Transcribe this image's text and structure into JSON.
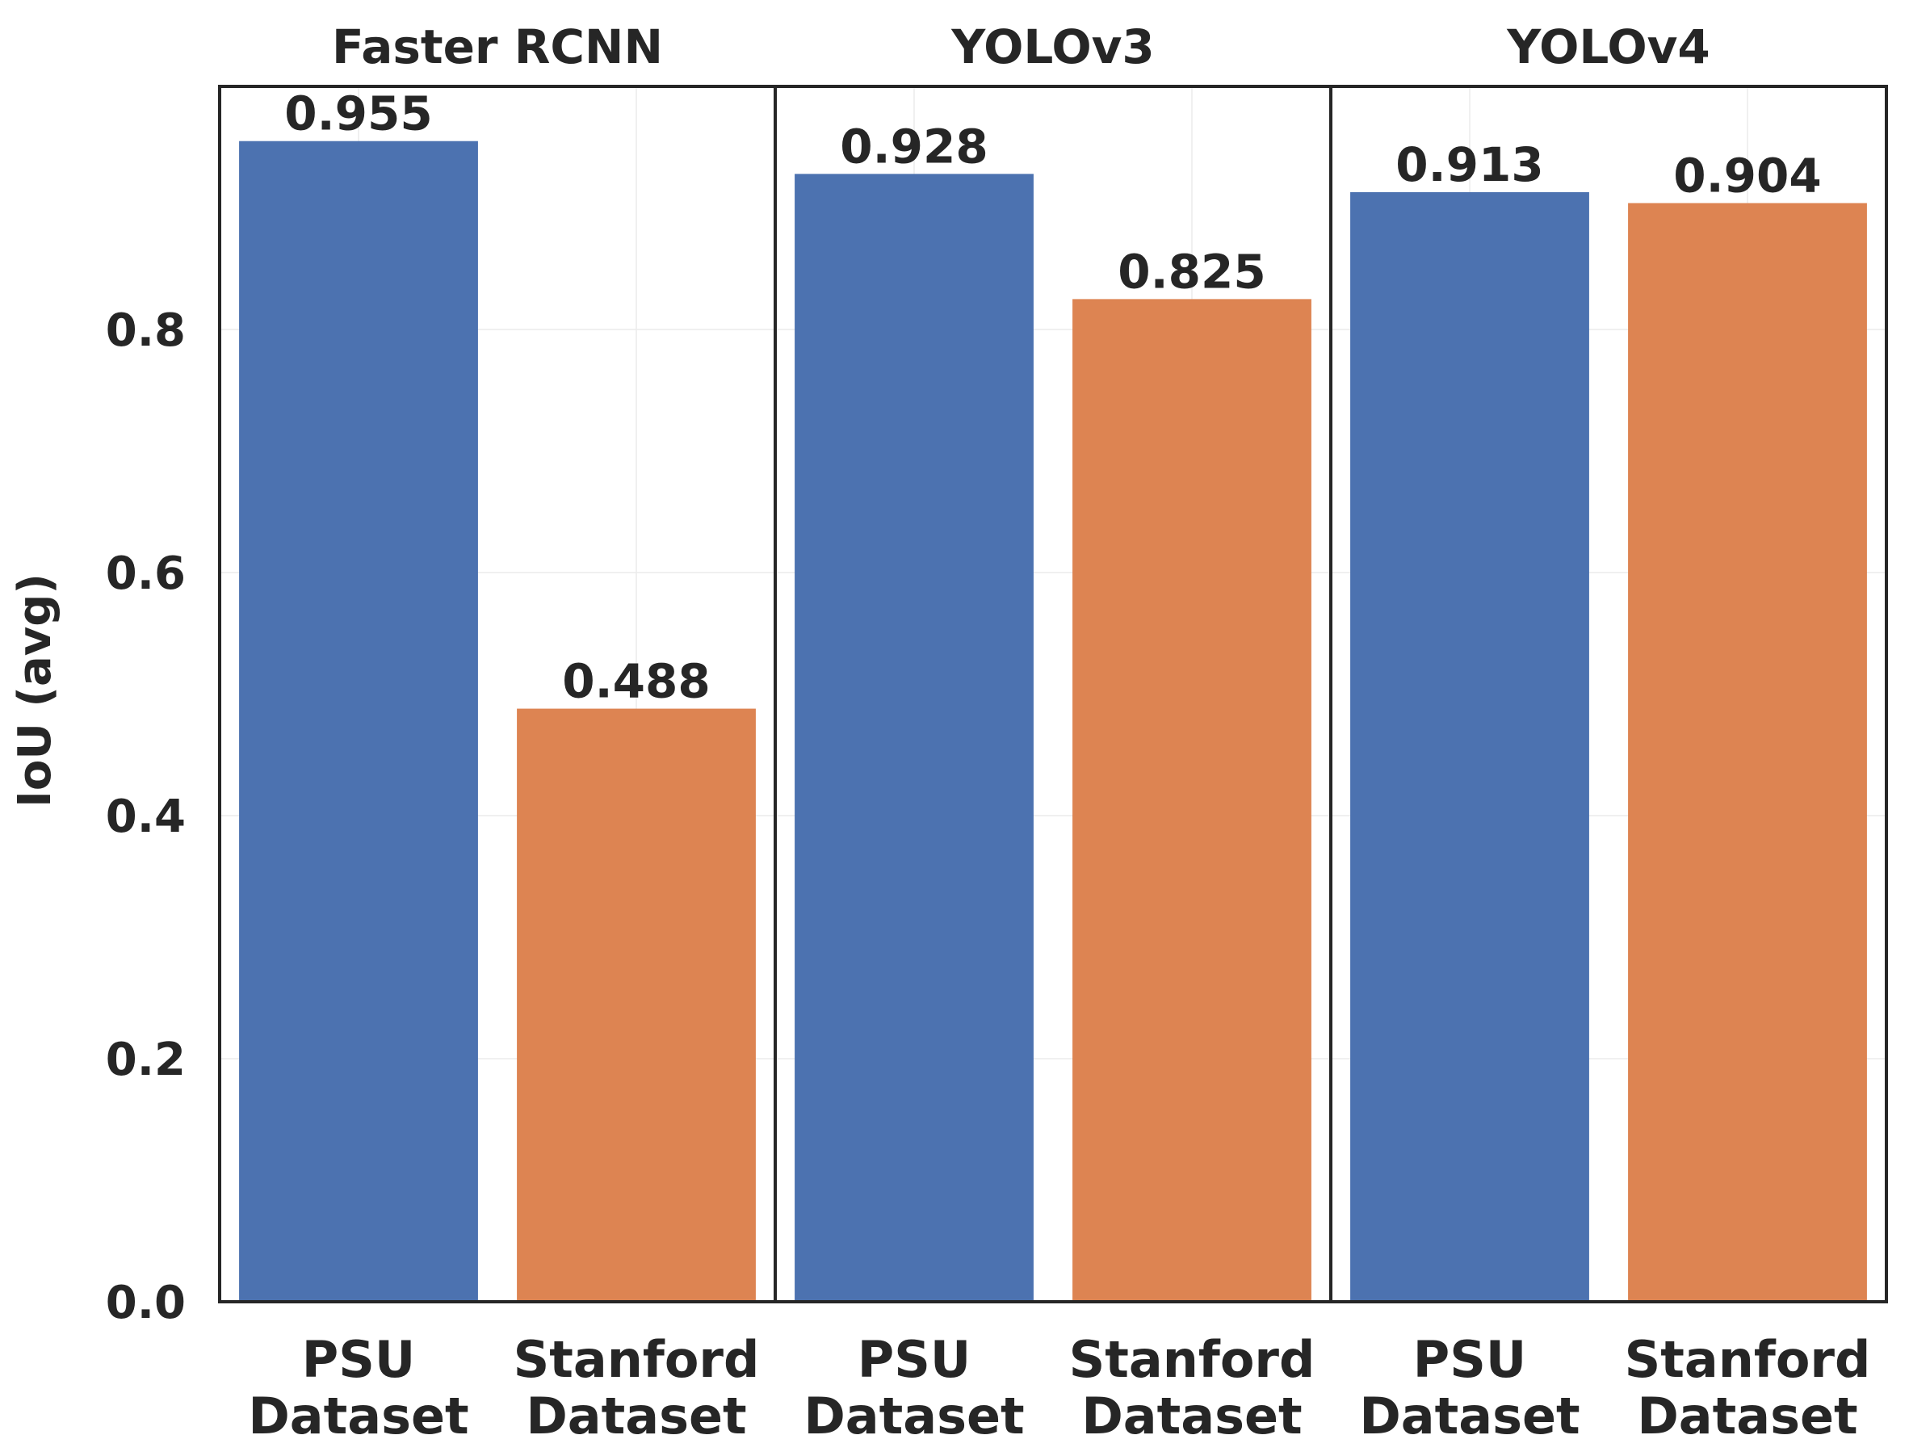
{
  "chart_data": {
    "type": "bar",
    "ylabel": "IoU (avg)",
    "ylim": [
      0,
      1.0
    ],
    "yticks": [
      0.0,
      0.2,
      0.4,
      0.6,
      0.8
    ],
    "ytick_labels": [
      "0.0",
      "0.2",
      "0.4",
      "0.6",
      "0.8"
    ],
    "grid": true,
    "categories": [
      "PSU Dataset",
      "Stanford Dataset"
    ],
    "category_lines": [
      [
        "PSU",
        "Dataset"
      ],
      [
        "Stanford",
        "Dataset"
      ]
    ],
    "colors": [
      "#4c72b0",
      "#dd8452"
    ],
    "panels": [
      {
        "title": "Faster RCNN",
        "values": [
          0.955,
          0.488
        ],
        "labels": [
          "0.955",
          "0.488"
        ]
      },
      {
        "title": "YOLOv3",
        "values": [
          0.928,
          0.825
        ],
        "labels": [
          "0.928",
          "0.825"
        ]
      },
      {
        "title": "YOLOv4",
        "values": [
          0.913,
          0.904
        ],
        "labels": [
          "0.913",
          "0.904"
        ]
      }
    ]
  }
}
